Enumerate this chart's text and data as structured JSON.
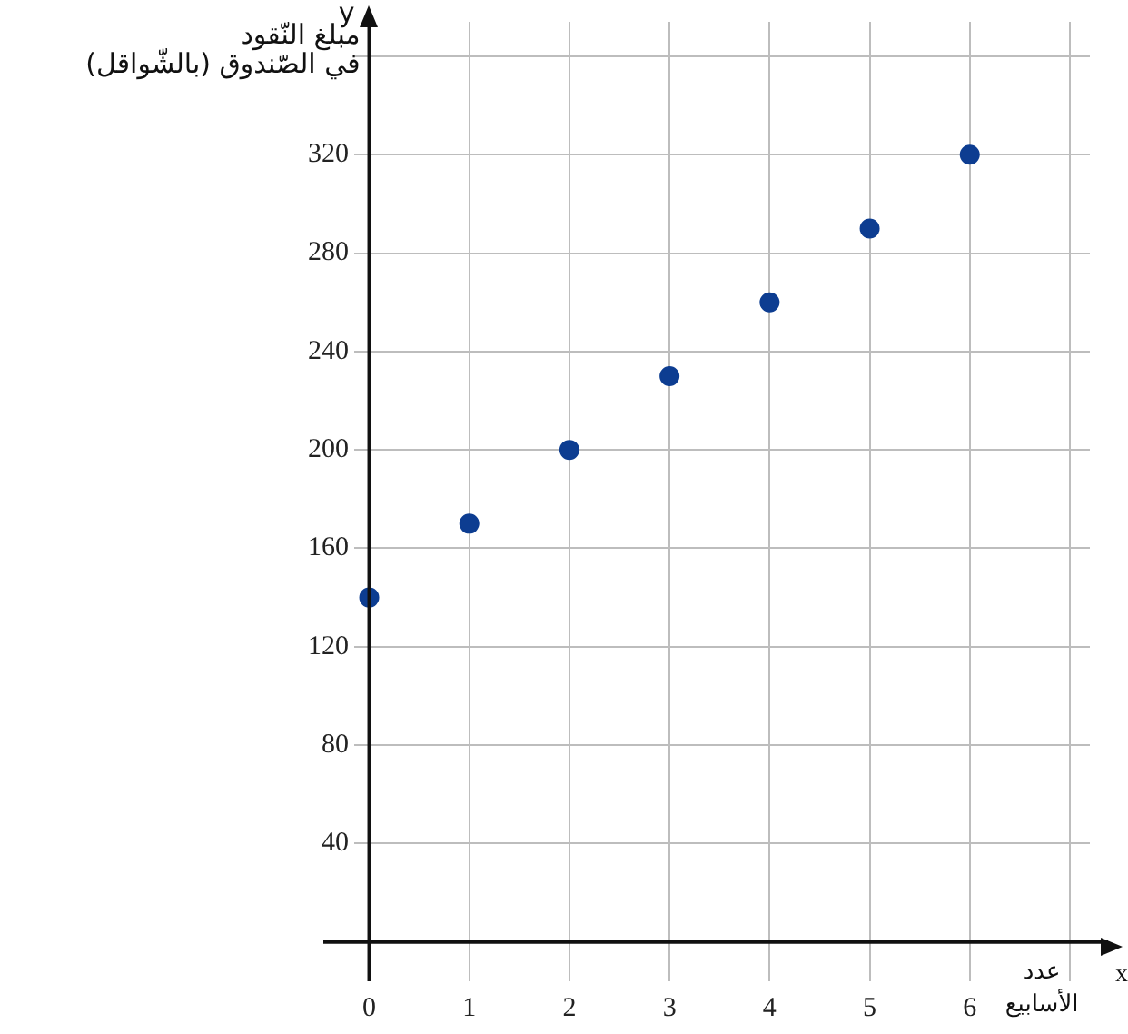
{
  "chart_data": {
    "type": "scatter",
    "xlabel": "عدد الأسابيع",
    "ylabel": "مبلغ النّقود\nفي الصّندوق (بالشّواقل)",
    "annotations": [
      "y",
      "x"
    ],
    "x": [
      0,
      1,
      2,
      3,
      4,
      5,
      6
    ],
    "series": [
      {
        "color": "#0d3d91",
        "values": [
          140,
          170,
          200,
          230,
          260,
          290,
          320
        ]
      }
    ],
    "xlim": [
      -0.15,
      7.2
    ],
    "xticks": [
      0,
      1,
      2,
      3,
      4,
      5,
      6,
      {
        "value": 7,
        "label": null
      }
    ],
    "ylim": [
      -16,
      374
    ],
    "yticks": [
      {
        "value": 0,
        "label": null
      },
      40,
      80,
      120,
      160,
      200,
      240,
      280,
      320,
      {
        "value": 360,
        "label": null
      }
    ],
    "grid": true,
    "legend": false,
    "marker": "circle"
  }
}
